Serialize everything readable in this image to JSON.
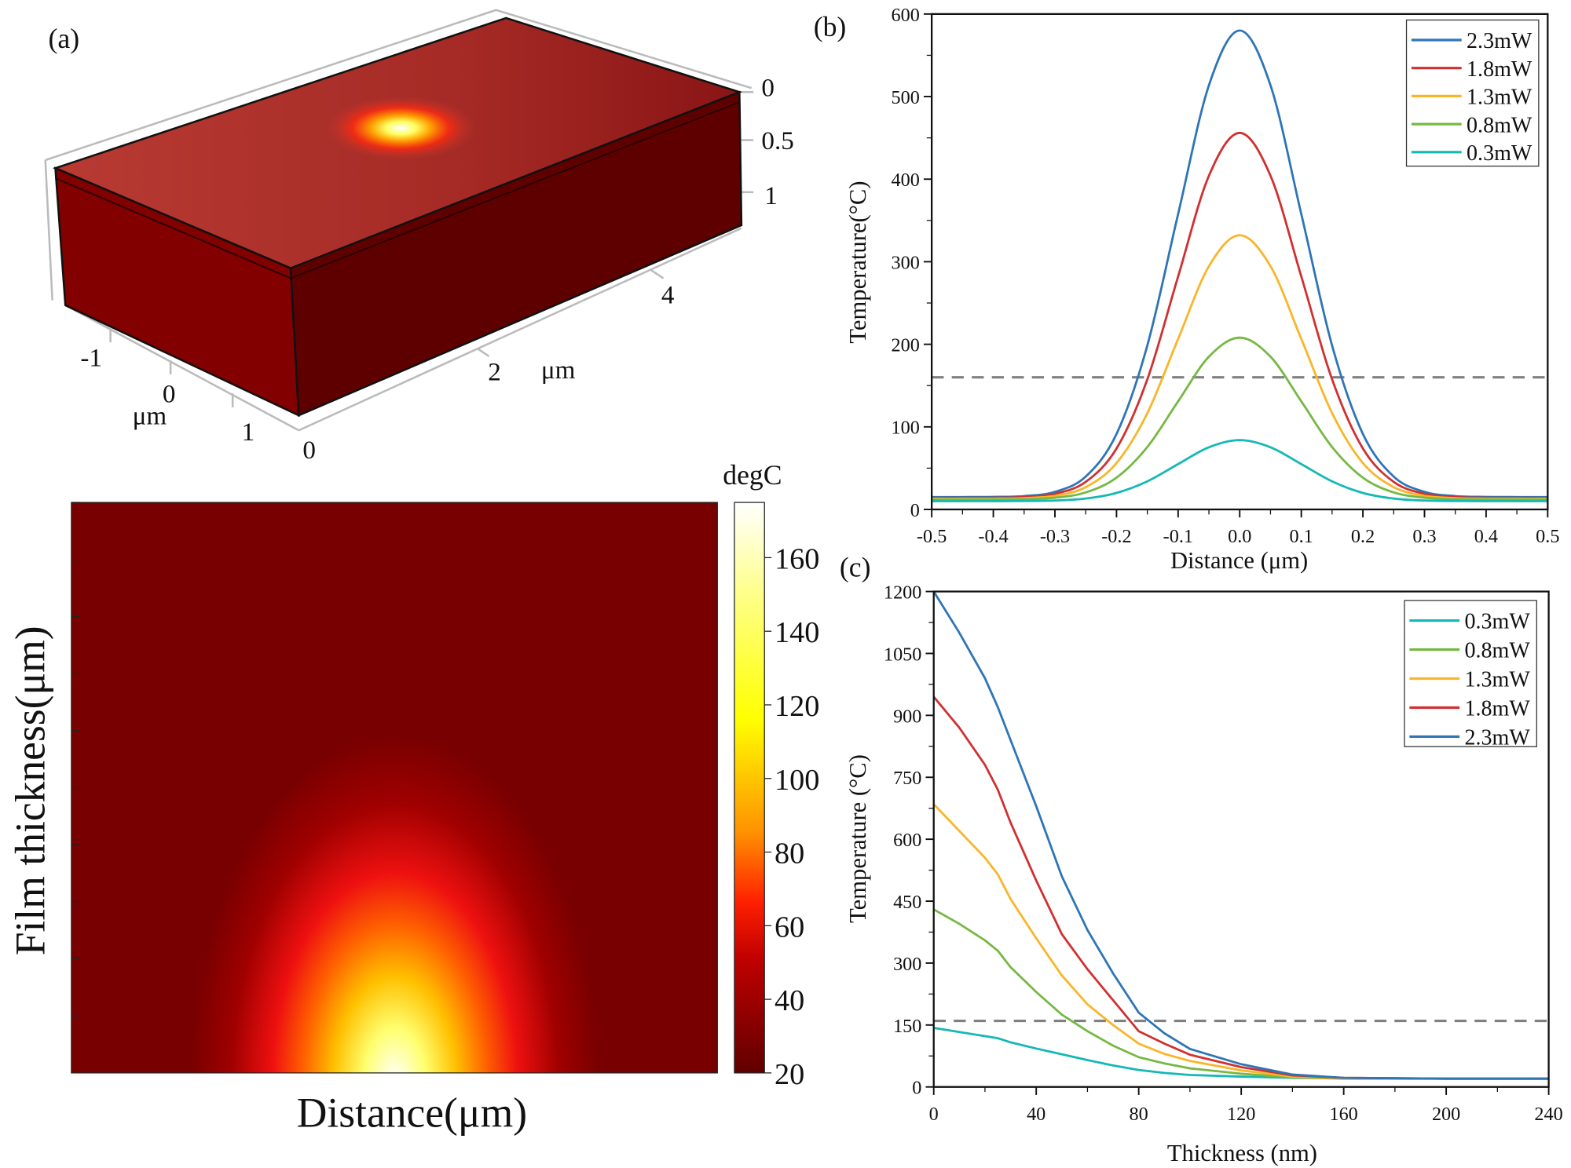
{
  "panel_a": {
    "label": "(a)",
    "axis_labels": {
      "z0": "0",
      "z05": "0.5",
      "z1": "1",
      "x4": "4",
      "x2": "2",
      "x_unit": "μm",
      "y_m1": "-1",
      "y0": "0",
      "y_unit": "μm",
      "y1": "1",
      "origin": "0"
    },
    "heatmap": {
      "xlabel": "Distance(μm)",
      "ylabel": "Film thickness(μm)",
      "colorbar_title": "degC",
      "colorbar_ticks": [
        "20",
        "40",
        "60",
        "80",
        "100",
        "120",
        "140",
        "160"
      ],
      "colorbar_range": [
        20,
        175
      ]
    }
  },
  "chart_data": [
    {
      "type": "line",
      "panel": "(b)",
      "xlabel": "Distance (μm)",
      "ylabel": "Temperature(°C)",
      "xlim": [
        -0.5,
        0.5
      ],
      "ylim": [
        0,
        600
      ],
      "xticks": [
        "-0.5",
        "-0.4",
        "-0.3",
        "-0.2",
        "-0.1",
        "0.0",
        "0.1",
        "0.2",
        "0.3",
        "0.4",
        "0.5"
      ],
      "yticks": [
        "0",
        "100",
        "200",
        "300",
        "400",
        "500",
        "600"
      ],
      "threshold": 160,
      "legend_position": "top-right",
      "x": [
        -0.5,
        -0.45,
        -0.4,
        -0.35,
        -0.3,
        -0.25,
        -0.2,
        -0.15,
        -0.1,
        -0.05,
        0,
        0.05,
        0.1,
        0.15,
        0.2,
        0.25,
        0.3,
        0.35,
        0.4,
        0.45,
        0.5
      ],
      "series": [
        {
          "name": "2.3mW",
          "color": "#2e75b6",
          "values": [
            15,
            15,
            15.2,
            16.2,
            21.3,
            39.8,
            91.4,
            198.5,
            357.7,
            513.6,
            580,
            513.6,
            357.7,
            198.5,
            91.4,
            39.8,
            21.3,
            16.2,
            15.2,
            15,
            15
          ]
        },
        {
          "name": "1.8mW",
          "color": "#d03030",
          "values": [
            14,
            14,
            14.1,
            15,
            18.9,
            33.4,
            73.8,
            157.5,
            282.1,
            404.1,
            456,
            404.1,
            282.1,
            157.5,
            73.8,
            33.4,
            18.9,
            15,
            14.1,
            14,
            14
          ]
        },
        {
          "name": "1.3mW",
          "color": "#f8b62a",
          "values": [
            13,
            13,
            13.1,
            13.7,
            16.5,
            27,
            56.2,
            116.6,
            206.5,
            294.5,
            332,
            294.5,
            206.5,
            116.6,
            56.2,
            27,
            16.5,
            13.7,
            13.1,
            13,
            13
          ]
        },
        {
          "name": "0.8mW",
          "color": "#76b843",
          "values": [
            12,
            12,
            12.1,
            12.4,
            14.2,
            20.6,
            38.5,
            75.6,
            130.9,
            185,
            208,
            185,
            130.9,
            75.6,
            38.5,
            20.6,
            14.2,
            12.4,
            12.1,
            12,
            12
          ]
        },
        {
          "name": "0.3mW",
          "color": "#14b8b4",
          "values": [
            10,
            10,
            10,
            10.2,
            10.8,
            13.2,
            20,
            34,
            54.9,
            75.3,
            84,
            75.3,
            54.9,
            34,
            20,
            13.2,
            10.8,
            10.2,
            10,
            10,
            10
          ]
        }
      ]
    },
    {
      "type": "line",
      "panel": "(c)",
      "xlabel": "Thickness (nm)",
      "ylabel": "Temperature (°C)",
      "xlim": [
        0,
        240
      ],
      "ylim": [
        0,
        1200
      ],
      "xticks": [
        "0",
        "40",
        "80",
        "120",
        "160",
        "200",
        "240"
      ],
      "yticks": [
        "0",
        "150",
        "300",
        "450",
        "600",
        "750",
        "900",
        "1050",
        "1200"
      ],
      "threshold": 160,
      "legend_position": "top-right",
      "x": [
        0,
        10,
        20,
        25,
        30,
        40,
        50,
        60,
        70,
        80,
        90,
        100,
        120,
        140,
        160,
        200,
        240
      ],
      "series": [
        {
          "name": "0.3mW",
          "color": "#14b8b4",
          "values": [
            143,
            133,
            123,
            118,
            108,
            93,
            79,
            65,
            52,
            41,
            34,
            29,
            25,
            22,
            21,
            20,
            20
          ]
        },
        {
          "name": "0.8mW",
          "color": "#76b843",
          "values": [
            430,
            395,
            355,
            330,
            290,
            230,
            175,
            135,
            100,
            72,
            57,
            45,
            32,
            23,
            20,
            20,
            20
          ]
        },
        {
          "name": "1.3mW",
          "color": "#f8b62a",
          "values": [
            685,
            620,
            555,
            515,
            455,
            360,
            270,
            200,
            150,
            105,
            80,
            63,
            40,
            25,
            21,
            20,
            20
          ]
        },
        {
          "name": "1.8mW",
          "color": "#d03030",
          "values": [
            945,
            870,
            780,
            720,
            640,
            500,
            370,
            285,
            210,
            135,
            105,
            78,
            48,
            28,
            22,
            20,
            20
          ]
        },
        {
          "name": "2.3mW",
          "color": "#2e75b6",
          "values": [
            1200,
            1100,
            990,
            920,
            840,
            680,
            510,
            380,
            275,
            180,
            130,
            92,
            55,
            30,
            22,
            20,
            20
          ]
        }
      ]
    }
  ]
}
